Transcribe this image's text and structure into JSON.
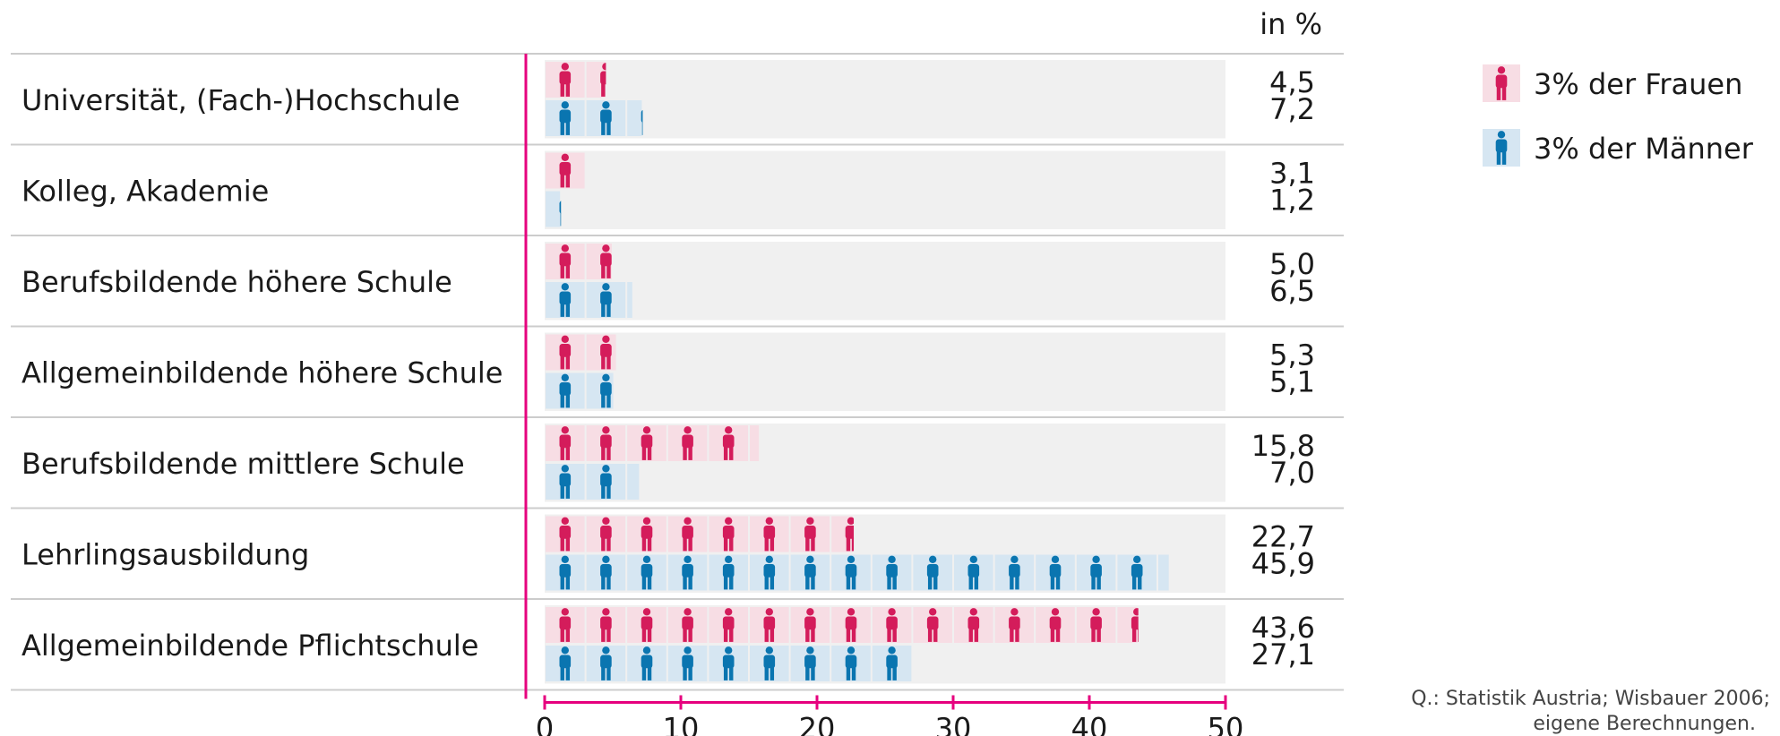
{
  "chart_data": {
    "type": "bar",
    "unit_label": "in %",
    "categories": [
      "Universität, (Fach-)Hochschule",
      "Kolleg, Akademie",
      "Berufsbildende höhere Schule",
      "Allgemeinbildende höhere Schule",
      "Berufsbildende mittlere Schule",
      "Lehrlingsausbildung",
      "Allgemeinbildende Pflichtschule"
    ],
    "series": [
      {
        "name": "3% der Frauen",
        "values": [
          4.5,
          3.1,
          5.0,
          5.3,
          15.8,
          22.7,
          43.6
        ],
        "value_labels": [
          "4,5",
          "3,1",
          "5,0",
          "5,3",
          "15,8",
          "22,7",
          "43,6"
        ],
        "color": "#d41c5b",
        "cell_color": "#f7dde4"
      },
      {
        "name": "3% der Männer",
        "values": [
          7.2,
          1.2,
          6.5,
          5.1,
          7.0,
          45.9,
          27.1
        ],
        "value_labels": [
          "7,2",
          "1,2",
          "6,5",
          "5,1",
          "7,0",
          "45,9",
          "27,1"
        ],
        "color": "#0a75b0",
        "cell_color": "#d6e6f2"
      }
    ],
    "unit_per_icon": 3,
    "xlim": [
      0,
      50
    ],
    "xticks": [
      0,
      10,
      20,
      30,
      40,
      50
    ],
    "xtick_labels": [
      "0",
      "10",
      "20",
      "30",
      "40",
      "50"
    ],
    "axis_color": "#e6007e",
    "background_color": "#f0f0f0",
    "legend_position": "top-right",
    "source_lines": [
      "Q.: Statistik Austria; Wisbauer 2006;",
      "eigene Berechnungen."
    ]
  }
}
